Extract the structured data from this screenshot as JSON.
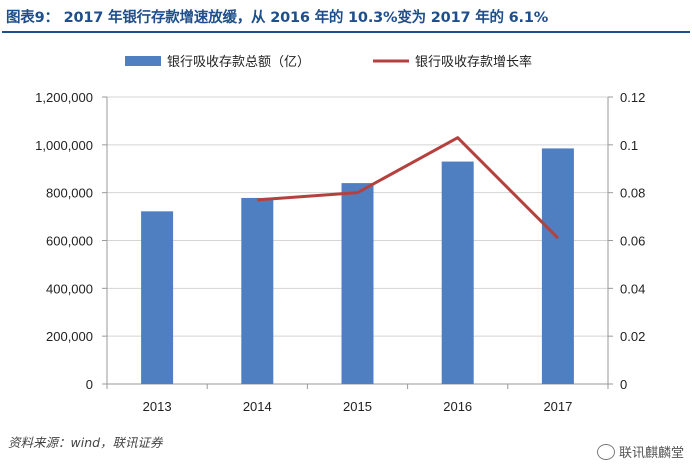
{
  "title": "图表9：  2017 年银行存款增速放缓，从 2016 年的 10.3%变为 2017 年的 6.1%",
  "source": "资料来源：wind，联讯证券",
  "watermark": "联讯麒麟堂",
  "colors": {
    "bar": "#4f7fc0",
    "line": "#b5413f",
    "title": "#1f4e8c"
  },
  "chart_data": {
    "type": "bar",
    "categories": [
      "2013",
      "2014",
      "2015",
      "2016",
      "2017"
    ],
    "series": [
      {
        "name": "银行吸收存款总额（亿）",
        "type": "bar",
        "axis": "left",
        "values": [
          722000,
          778000,
          840000,
          930000,
          985000
        ]
      },
      {
        "name": "银行吸收存款增长率",
        "type": "line",
        "axis": "right",
        "values": [
          null,
          0.077,
          0.08,
          0.103,
          0.061
        ]
      }
    ],
    "y_left": {
      "min": 0,
      "max": 1200000,
      "ticks": [
        "0",
        "200,000",
        "400,000",
        "600,000",
        "800,000",
        "1,000,000",
        "1,200,000"
      ]
    },
    "y_right": {
      "min": 0,
      "max": 0.12,
      "ticks": [
        "0",
        "0.02",
        "0.04",
        "0.06",
        "0.08",
        "0.1",
        "0.12"
      ]
    },
    "grid": true,
    "legend_position": "top"
  }
}
